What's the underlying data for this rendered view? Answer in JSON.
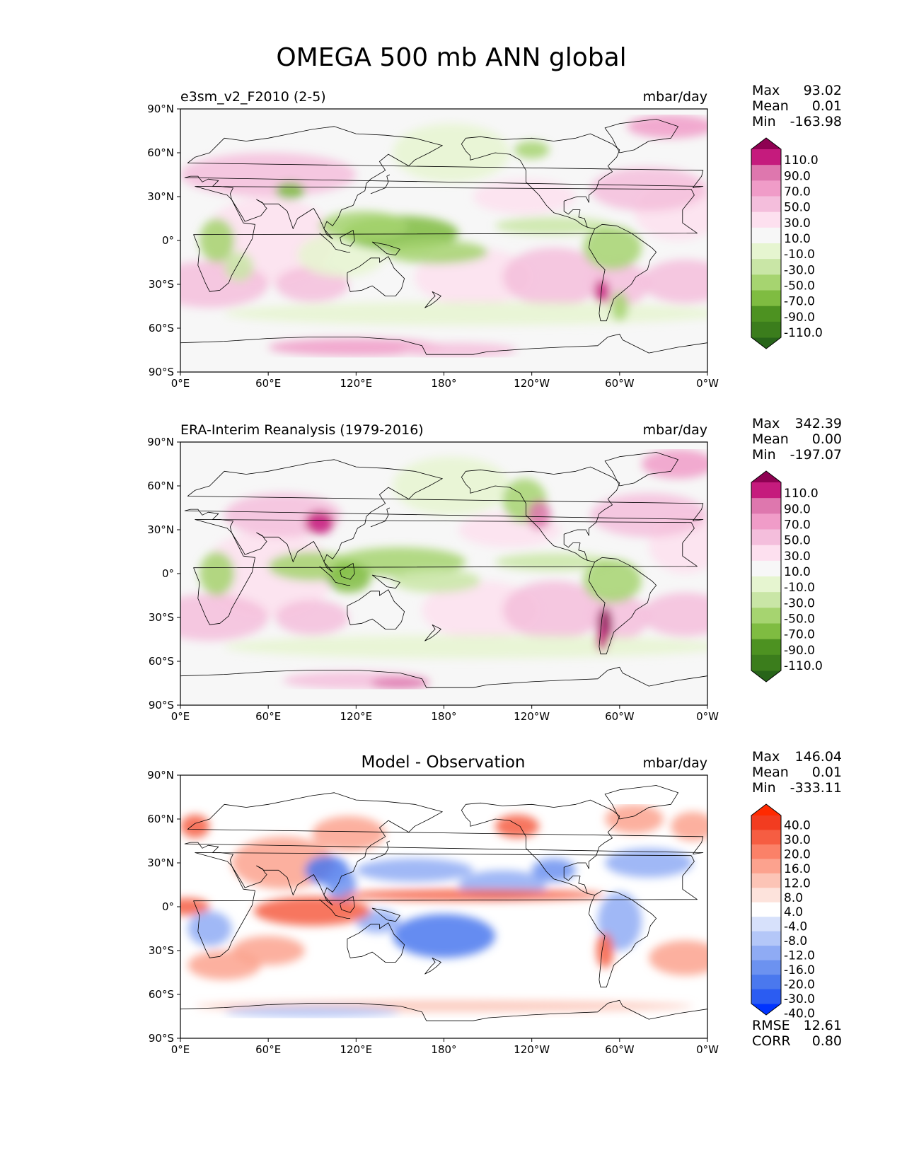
{
  "figure": {
    "title": "OMEGA 500 mb ANN global"
  },
  "axes": {
    "lon_ticks": [
      "0°E",
      "60°E",
      "120°E",
      "180°",
      "120°W",
      "60°W",
      "0°W"
    ],
    "lat_ticks": [
      "90°N",
      "60°N",
      "30°N",
      "0°",
      "30°S",
      "60°S",
      "90°S"
    ]
  },
  "panels": [
    {
      "title": "e3sm_v2_F2010 (2-5)",
      "units": "mbar/day",
      "stats": [
        {
          "label": "Max",
          "value": "93.02"
        },
        {
          "label": "Mean",
          "value": "0.01"
        },
        {
          "label": "Min",
          "value": "-163.98"
        }
      ],
      "colorbar": {
        "labels": [
          "110.0",
          "90.0",
          "70.0",
          "50.0",
          "30.0",
          "10.0",
          "-10.0",
          "-30.0",
          "-50.0",
          "-70.0",
          "-90.0",
          "-110.0"
        ],
        "colors": [
          "#276419",
          "#3b7d1c",
          "#4d9221",
          "#7fbc41",
          "#a6d470",
          "#c9e6a6",
          "#e6f5d0",
          "#f7f7f7",
          "#fde0ef",
          "#f4bedc",
          "#f09cc8",
          "#de77ae",
          "#c51b7d",
          "#8e0152"
        ]
      }
    },
    {
      "title": "ERA-Interim Reanalysis (1979-2016)",
      "units": "mbar/day",
      "stats": [
        {
          "label": "Max",
          "value": "342.39"
        },
        {
          "label": "Mean",
          "value": "0.00"
        },
        {
          "label": "Min",
          "value": "-197.07"
        }
      ],
      "colorbar": {
        "labels": [
          "110.0",
          "90.0",
          "70.0",
          "50.0",
          "30.0",
          "10.0",
          "-10.0",
          "-30.0",
          "-50.0",
          "-70.0",
          "-90.0",
          "-110.0"
        ],
        "colors": [
          "#276419",
          "#3b7d1c",
          "#4d9221",
          "#7fbc41",
          "#a6d470",
          "#c9e6a6",
          "#e6f5d0",
          "#f7f7f7",
          "#fde0ef",
          "#f4bedc",
          "#f09cc8",
          "#de77ae",
          "#c51b7d",
          "#8e0152"
        ]
      }
    },
    {
      "title": "Model - Observation",
      "units": "mbar/day",
      "stats": [
        {
          "label": "Max",
          "value": "146.04"
        },
        {
          "label": "Mean",
          "value": "0.01"
        },
        {
          "label": "Min",
          "value": "-333.11"
        }
      ],
      "extra_stats": [
        {
          "label": "RMSE",
          "value": "12.61"
        },
        {
          "label": "CORR",
          "value": "0.80"
        }
      ],
      "colorbar": {
        "labels": [
          "40.0",
          "30.0",
          "20.0",
          "16.0",
          "12.0",
          "8.0",
          "4.0",
          "-4.0",
          "-8.0",
          "-12.0",
          "-16.0",
          "-20.0",
          "-30.0",
          "-40.0"
        ],
        "colors": [
          "#0033ff",
          "#2b5cf2",
          "#4a78ee",
          "#6c92f0",
          "#8fabf4",
          "#b4c7f8",
          "#d7e1fb",
          "#ffffff",
          "#fde3dc",
          "#fcc4b6",
          "#fca28e",
          "#fb8168",
          "#f65d42",
          "#f23c20",
          "#ff2a00"
        ]
      }
    }
  ],
  "chart_data": [
    {
      "type": "heatmap",
      "title": "e3sm_v2_F2010 (2-5)",
      "units": "mbar/day",
      "lon_range": [
        0,
        360
      ],
      "lat_range": [
        -90,
        90
      ],
      "levels": [
        -110,
        -90,
        -70,
        -50,
        -30,
        -10,
        10,
        30,
        50,
        70,
        90,
        110
      ],
      "extend": "both",
      "max": 93.02,
      "mean": 0.01,
      "min": -163.98
    },
    {
      "type": "heatmap",
      "title": "ERA-Interim Reanalysis (1979-2016)",
      "units": "mbar/day",
      "lon_range": [
        0,
        360
      ],
      "lat_range": [
        -90,
        90
      ],
      "levels": [
        -110,
        -90,
        -70,
        -50,
        -30,
        -10,
        10,
        30,
        50,
        70,
        90,
        110
      ],
      "extend": "both",
      "max": 342.39,
      "mean": 0.0,
      "min": -197.07
    },
    {
      "type": "heatmap",
      "title": "Model - Observation",
      "units": "mbar/day",
      "lon_range": [
        0,
        360
      ],
      "lat_range": [
        -90,
        90
      ],
      "levels": [
        -40,
        -30,
        -20,
        -16,
        -12,
        -8,
        -4,
        4,
        8,
        12,
        16,
        20,
        30,
        40
      ],
      "extend": "both",
      "max": 146.04,
      "mean": 0.01,
      "min": -333.11,
      "rmse": 12.61,
      "corr": 0.8
    }
  ]
}
